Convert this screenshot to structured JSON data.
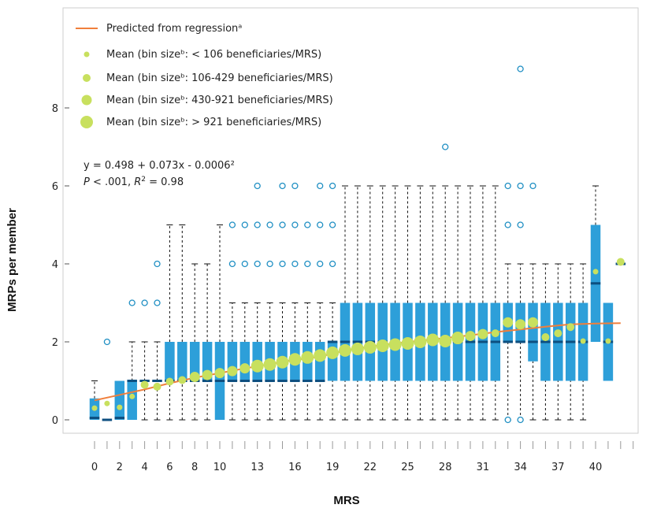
{
  "chart_data": {
    "type": "box",
    "xlabel": "MRS",
    "ylabel": "MRPs per member",
    "xlim": [
      -0.5,
      42.5
    ],
    "ylim": [
      -0.2,
      10
    ],
    "y_ticks": [
      0,
      2,
      4,
      6,
      8
    ],
    "x_tick_labels": [
      "0",
      "2",
      "4",
      "6",
      "8",
      "10",
      "13",
      "16",
      "19",
      "22",
      "25",
      "28",
      "31",
      "34",
      "37",
      "40"
    ],
    "grid": false,
    "colors": {
      "box": "#2d9fd9",
      "median": "#0d4f80",
      "regression": "#f07f3c",
      "mean": "#c8e05e",
      "outlier": "#1f8fc3",
      "whisker": "#111111",
      "frame": "#cccccc"
    },
    "legend": {
      "placement": "top-left",
      "items": [
        {
          "kind": "line",
          "label": "Predicted from regressionᵃ"
        },
        {
          "kind": "dot",
          "size": 1,
          "label": "Mean (bin sizeᵇ: < 106 beneficiaries/MRS)"
        },
        {
          "kind": "dot",
          "size": 2,
          "label": "Mean (bin sizeᵇ: 106-429 beneficiaries/MRS)"
        },
        {
          "kind": "dot",
          "size": 3,
          "label": "Mean (bin sizeᵇ: 430-921 beneficiaries/MRS)"
        },
        {
          "kind": "dot",
          "size": 4,
          "label": "Mean (bin sizeᵇ: > 921 beneficiaries/MRS)"
        }
      ]
    },
    "annotation": {
      "equation": "y = 0.498 + 0.073x - 0.0006²",
      "stats_p": "P",
      "stats_mid": " < .001, ",
      "stats_r": "R",
      "stats_sup": "2",
      "stats_val": " = 0.98"
    },
    "regression": {
      "x": [
        0,
        2,
        4,
        6,
        8,
        10,
        12,
        14,
        16,
        18,
        20,
        22,
        24,
        26,
        28,
        30,
        32,
        34,
        36,
        38,
        40,
        42
      ],
      "y": [
        0.5,
        0.64,
        0.78,
        0.94,
        1.08,
        1.2,
        1.32,
        1.43,
        1.54,
        1.62,
        1.78,
        1.88,
        1.96,
        2.03,
        2.1,
        2.17,
        2.25,
        2.32,
        2.39,
        2.45,
        2.47,
        2.48
      ]
    },
    "boxes": [
      {
        "mrs": 0,
        "q1": 0,
        "median": 0.05,
        "q3": 0.55,
        "whisker_low": 0,
        "whisker_high": 1.0,
        "mean": 0.3,
        "mean_size": 1,
        "outliers": []
      },
      {
        "mrs": 1,
        "q1": 0,
        "median": 0,
        "q3": 0,
        "whisker_low": 0,
        "whisker_high": 0,
        "mean": 0.42,
        "mean_size": 1,
        "outliers": [
          2
        ]
      },
      {
        "mrs": 2,
        "q1": 0,
        "median": 0.05,
        "q3": 1.0,
        "whisker_low": 0,
        "whisker_high": 1.0,
        "mean": 0.32,
        "mean_size": 1,
        "outliers": []
      },
      {
        "mrs": 3,
        "q1": 0,
        "median": 1.0,
        "q3": 1.0,
        "whisker_low": 0,
        "whisker_high": 2.0,
        "mean": 0.6,
        "mean_size": 1,
        "outliers": [
          3
        ]
      },
      {
        "mrs": 4,
        "q1": 1.0,
        "median": 1.0,
        "q3": 1.0,
        "whisker_low": 0,
        "whisker_high": 2.0,
        "mean": 0.9,
        "mean_size": 2,
        "outliers": [
          3
        ]
      },
      {
        "mrs": 5,
        "q1": 1.0,
        "median": 1.0,
        "q3": 1.0,
        "whisker_low": 0,
        "whisker_high": 2.0,
        "mean": 0.85,
        "mean_size": 2,
        "outliers": [
          3,
          4
        ]
      },
      {
        "mrs": 6,
        "q1": 1.0,
        "median": 1.0,
        "q3": 2.0,
        "whisker_low": 0,
        "whisker_high": 5.0,
        "mean": 0.98,
        "mean_size": 2,
        "outliers": []
      },
      {
        "mrs": 7,
        "q1": 1.0,
        "median": 1.0,
        "q3": 2.0,
        "whisker_low": 0,
        "whisker_high": 5.0,
        "mean": 1.02,
        "mean_size": 2,
        "outliers": []
      },
      {
        "mrs": 8,
        "q1": 1.0,
        "median": 1.0,
        "q3": 2.0,
        "whisker_low": 0,
        "whisker_high": 4.0,
        "mean": 1.1,
        "mean_size": 3,
        "outliers": []
      },
      {
        "mrs": 9,
        "q1": 1.0,
        "median": 1.0,
        "q3": 2.0,
        "whisker_low": 0,
        "whisker_high": 4.0,
        "mean": 1.15,
        "mean_size": 3,
        "outliers": []
      },
      {
        "mrs": 10,
        "q1": 0,
        "median": 1.0,
        "q3": 2.0,
        "whisker_low": 0,
        "whisker_high": 5.0,
        "mean": 1.2,
        "mean_size": 3,
        "outliers": []
      },
      {
        "mrs": 11,
        "q1": 1.0,
        "median": 1.0,
        "q3": 2.0,
        "whisker_low": 0,
        "whisker_high": 3.0,
        "mean": 1.25,
        "mean_size": 3,
        "outliers": [
          4,
          5
        ]
      },
      {
        "mrs": 12,
        "q1": 1.0,
        "median": 1.0,
        "q3": 2.0,
        "whisker_low": 0,
        "whisker_high": 3.0,
        "mean": 1.32,
        "mean_size": 3,
        "outliers": [
          4,
          5
        ]
      },
      {
        "mrs": 13,
        "q1": 1.0,
        "median": 1.0,
        "q3": 2.0,
        "whisker_low": 0,
        "whisker_high": 3.0,
        "mean": 1.38,
        "mean_size": 4,
        "outliers": [
          4,
          5,
          6
        ]
      },
      {
        "mrs": 14,
        "q1": 1.0,
        "median": 1.0,
        "q3": 2.0,
        "whisker_low": 0,
        "whisker_high": 3.0,
        "mean": 1.42,
        "mean_size": 4,
        "outliers": [
          4,
          5
        ]
      },
      {
        "mrs": 15,
        "q1": 1.0,
        "median": 1.0,
        "q3": 2.0,
        "whisker_low": 0,
        "whisker_high": 3.0,
        "mean": 1.48,
        "mean_size": 4,
        "outliers": [
          4,
          5,
          6
        ]
      },
      {
        "mrs": 16,
        "q1": 1.0,
        "median": 1.0,
        "q3": 2.0,
        "whisker_low": 0,
        "whisker_high": 3.0,
        "mean": 1.55,
        "mean_size": 4,
        "outliers": [
          4,
          5,
          6
        ]
      },
      {
        "mrs": 17,
        "q1": 1.0,
        "median": 1.0,
        "q3": 2.0,
        "whisker_low": 0,
        "whisker_high": 3.0,
        "mean": 1.6,
        "mean_size": 4,
        "outliers": [
          4,
          5
        ]
      },
      {
        "mrs": 18,
        "q1": 1.0,
        "median": 1.0,
        "q3": 2.0,
        "whisker_low": 0,
        "whisker_high": 3.0,
        "mean": 1.65,
        "mean_size": 4,
        "outliers": [
          4,
          5,
          6
        ]
      },
      {
        "mrs": 19,
        "q1": 1.0,
        "median": 2.0,
        "q3": 2.0,
        "whisker_low": 0,
        "whisker_high": 3.0,
        "mean": 1.72,
        "mean_size": 4,
        "outliers": [
          4,
          5,
          6
        ]
      },
      {
        "mrs": 20,
        "q1": 1.0,
        "median": 2.0,
        "q3": 3.0,
        "whisker_low": 0,
        "whisker_high": 6.0,
        "mean": 1.78,
        "mean_size": 4,
        "outliers": []
      },
      {
        "mrs": 21,
        "q1": 1.0,
        "median": 2.0,
        "q3": 3.0,
        "whisker_low": 0,
        "whisker_high": 6.0,
        "mean": 1.82,
        "mean_size": 4,
        "outliers": []
      },
      {
        "mrs": 22,
        "q1": 1.0,
        "median": 2.0,
        "q3": 3.0,
        "whisker_low": 0,
        "whisker_high": 6.0,
        "mean": 1.86,
        "mean_size": 4,
        "outliers": []
      },
      {
        "mrs": 23,
        "q1": 1.0,
        "median": 2.0,
        "q3": 3.0,
        "whisker_low": 0,
        "whisker_high": 6.0,
        "mean": 1.9,
        "mean_size": 4,
        "outliers": []
      },
      {
        "mrs": 24,
        "q1": 1.0,
        "median": 2.0,
        "q3": 3.0,
        "whisker_low": 0,
        "whisker_high": 6.0,
        "mean": 1.93,
        "mean_size": 4,
        "outliers": []
      },
      {
        "mrs": 25,
        "q1": 1.0,
        "median": 2.0,
        "q3": 3.0,
        "whisker_low": 0,
        "whisker_high": 6.0,
        "mean": 1.96,
        "mean_size": 4,
        "outliers": []
      },
      {
        "mrs": 26,
        "q1": 1.0,
        "median": 2.0,
        "q3": 3.0,
        "whisker_low": 0,
        "whisker_high": 6.0,
        "mean": 2.0,
        "mean_size": 4,
        "outliers": []
      },
      {
        "mrs": 27,
        "q1": 1.0,
        "median": 2.0,
        "q3": 3.0,
        "whisker_low": 0,
        "whisker_high": 6.0,
        "mean": 2.05,
        "mean_size": 4,
        "outliers": []
      },
      {
        "mrs": 28,
        "q1": 1.0,
        "median": 2.0,
        "q3": 3.0,
        "whisker_low": 0,
        "whisker_high": 6.0,
        "mean": 2.02,
        "mean_size": 4,
        "outliers": [
          7
        ]
      },
      {
        "mrs": 29,
        "q1": 1.0,
        "median": 2.0,
        "q3": 3.0,
        "whisker_low": 0,
        "whisker_high": 6.0,
        "mean": 2.1,
        "mean_size": 4,
        "outliers": []
      },
      {
        "mrs": 30,
        "q1": 1.0,
        "median": 2.0,
        "q3": 3.0,
        "whisker_low": 0,
        "whisker_high": 6.0,
        "mean": 2.15,
        "mean_size": 3,
        "outliers": []
      },
      {
        "mrs": 31,
        "q1": 1.0,
        "median": 2.0,
        "q3": 3.0,
        "whisker_low": 0,
        "whisker_high": 6.0,
        "mean": 2.2,
        "mean_size": 3,
        "outliers": []
      },
      {
        "mrs": 32,
        "q1": 1.0,
        "median": 2.0,
        "q3": 3.0,
        "whisker_low": 0,
        "whisker_high": 6.0,
        "mean": 2.22,
        "mean_size": 2,
        "outliers": []
      },
      {
        "mrs": 33,
        "q1": 2.0,
        "median": 2.0,
        "q3": 3.0,
        "whisker_low": 0,
        "whisker_high": 4.0,
        "mean": 2.5,
        "mean_size": 3,
        "outliers": [
          0,
          5,
          6
        ]
      },
      {
        "mrs": 34,
        "q1": 2.0,
        "median": 2.0,
        "q3": 3.0,
        "whisker_low": 0,
        "whisker_high": 4.0,
        "mean": 2.45,
        "mean_size": 3,
        "outliers": [
          0,
          5,
          6,
          9
        ]
      },
      {
        "mrs": 35,
        "q1": 1.5,
        "median": 2.0,
        "q3": 3.0,
        "whisker_low": 0,
        "whisker_high": 4.0,
        "mean": 2.5,
        "mean_size": 3,
        "outliers": [
          6
        ]
      },
      {
        "mrs": 36,
        "q1": 1.0,
        "median": 2.0,
        "q3": 3.0,
        "whisker_low": 0,
        "whisker_high": 4.0,
        "mean": 2.12,
        "mean_size": 2,
        "outliers": []
      },
      {
        "mrs": 37,
        "q1": 1.0,
        "median": 2.0,
        "q3": 3.0,
        "whisker_low": 0,
        "whisker_high": 4.0,
        "mean": 2.22,
        "mean_size": 2,
        "outliers": []
      },
      {
        "mrs": 38,
        "q1": 1.0,
        "median": 2.0,
        "q3": 3.0,
        "whisker_low": 0,
        "whisker_high": 4.0,
        "mean": 2.38,
        "mean_size": 2,
        "outliers": []
      },
      {
        "mrs": 39,
        "q1": 1.0,
        "median": 2.0,
        "q3": 3.0,
        "whisker_low": 0,
        "whisker_high": 4.0,
        "mean": 2.02,
        "mean_size": 1,
        "outliers": []
      },
      {
        "mrs": 40,
        "q1": 2.0,
        "median": 3.5,
        "q3": 5.0,
        "whisker_low": 2.0,
        "whisker_high": 6.0,
        "mean": 3.8,
        "mean_size": 1,
        "outliers": []
      },
      {
        "mrs": 41,
        "q1": 1.0,
        "median": 2.0,
        "q3": 3.0,
        "whisker_low": 1.0,
        "whisker_high": 3.0,
        "mean": 2.02,
        "mean_size": 1,
        "outliers": []
      },
      {
        "mrs": 42,
        "q1": 4.0,
        "median": 4.0,
        "q3": 4.0,
        "whisker_low": 4.0,
        "whisker_high": 4.0,
        "mean": 4.05,
        "mean_size": 2,
        "outliers": []
      }
    ]
  }
}
